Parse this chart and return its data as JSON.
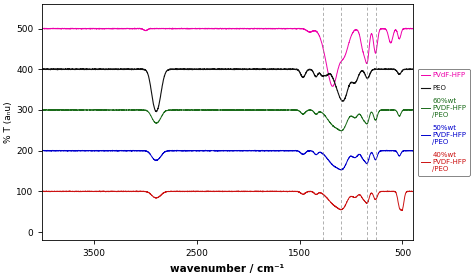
{
  "xlabel": "wavenumber / cm⁻¹",
  "ylabel": "% T (aₙu)",
  "xlim": [
    4000,
    400
  ],
  "ylim": [
    -20,
    560
  ],
  "yticks": [
    0,
    100,
    200,
    300,
    400,
    500
  ],
  "xticks": [
    3500,
    2500,
    1500,
    500
  ],
  "background_color": "#ffffff",
  "plot_bg": "#ffffff",
  "dashed_lines": [
    1270,
    1100,
    840,
    760
  ],
  "legend_labels": [
    "PVdF-HFP",
    "PEO",
    "60%wt\nPVDF-HFP\n/PEO",
    "50%wt\nPVDF-HFP\n/PEO",
    "40%wt\nPVDF-HFP\n/PEO"
  ],
  "line_colors": [
    "#ee00aa",
    "#111111",
    "#1a6b1a",
    "#0000cc",
    "#cc1111"
  ]
}
